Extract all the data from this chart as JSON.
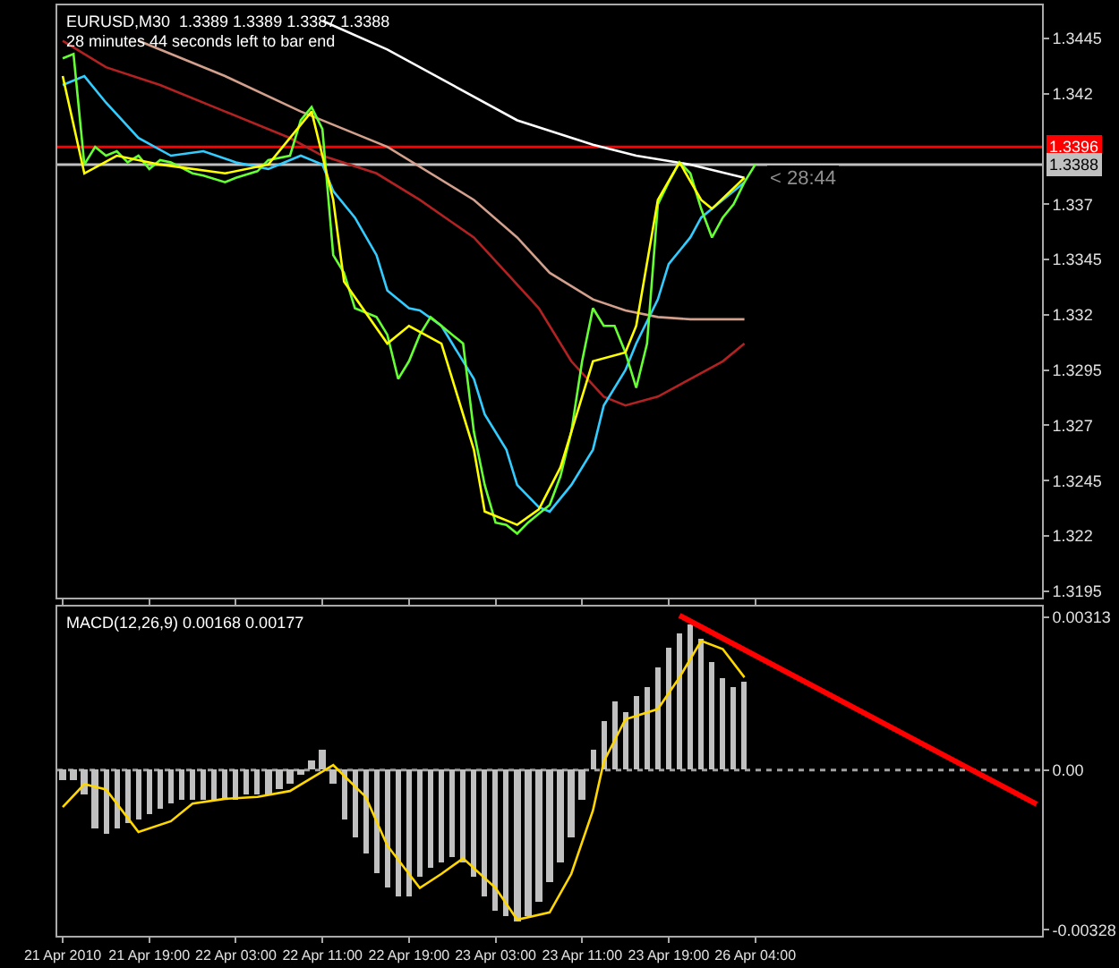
{
  "chart_data": [
    {
      "type": "line",
      "ylim": [
        1.3192,
        1.346
      ],
      "categories": [
        null,
        null,
        null,
        null,
        null,
        null,
        null,
        null,
        null,
        null,
        null,
        null,
        null,
        null,
        null,
        null,
        null,
        null,
        null,
        null,
        null,
        null,
        null,
        null,
        null,
        null,
        null,
        null,
        null,
        null,
        null,
        null,
        null,
        null,
        null,
        null,
        null,
        null,
        null,
        null,
        null,
        null,
        null,
        null,
        null,
        null,
        null,
        null,
        null,
        null,
        null,
        null,
        null,
        null,
        null,
        null,
        null,
        null,
        null,
        null,
        null,
        null,
        null,
        null,
        null,
        null,
        null,
        null,
        null,
        null,
        null,
        null,
        null,
        null,
        null,
        null,
        null,
        null,
        null,
        null,
        null,
        null,
        null,
        null,
        null,
        null,
        null,
        null,
        null,
        null,
        null
      ],
      "yticks": [
        1.3445,
        1.342,
        1.337,
        1.3345,
        1.332,
        1.3295,
        1.327,
        1.3245,
        1.322,
        1.3195
      ],
      "tick_labels": "y",
      "annotations": [
        "EURUSD,M30  1.3389 1.3389 1.3387 1.3388",
        "28 minutes 44 seconds left to bar end",
        {
          "text": "< 28:44",
          "y": 1.3388
        }
      ],
      "ref_lines": [
        {
          "axis": "y",
          "value": 1.3396,
          "label": "1.3396",
          "color": "#ff0000"
        },
        {
          "axis": "y",
          "value": 1.3388,
          "label": "1.3388",
          "color": "#c0c0c0"
        }
      ],
      "series": [
        {
          "color": "#ffffff",
          "values": [
            null,
            null,
            null,
            null,
            null,
            null,
            null,
            null,
            null,
            null,
            null,
            null,
            null,
            null,
            null,
            null,
            null,
            null,
            null,
            null,
            null,
            null,
            null,
            null,
            1.3453,
            null,
            null,
            null,
            null,
            null,
            1.344,
            null,
            null,
            null,
            null,
            null,
            1.3424,
            null,
            null,
            null,
            null,
            null,
            1.3408,
            null,
            null,
            null,
            null,
            null,
            null,
            1.3397,
            null,
            null,
            null,
            1.3392,
            null,
            null,
            null,
            null,
            1.3388,
            null,
            null,
            null,
            null,
            1.3382,
            null,
            null,
            null,
            null,
            null,
            null,
            null,
            null,
            null,
            null,
            null,
            null,
            null,
            null,
            null,
            null,
            null,
            null,
            null,
            null,
            null,
            null,
            null,
            null,
            null,
            null,
            null
          ]
        },
        {
          "color": "#d2a08c",
          "values": [
            null,
            null,
            null,
            null,
            null,
            null,
            null,
            1.3444,
            null,
            null,
            null,
            null,
            null,
            null,
            null,
            1.3428,
            null,
            null,
            null,
            null,
            null,
            null,
            1.3412,
            null,
            null,
            null,
            null,
            null,
            null,
            null,
            1.3396,
            null,
            null,
            null,
            null,
            null,
            null,
            null,
            1.3372,
            null,
            null,
            null,
            1.3355,
            null,
            null,
            1.3339,
            null,
            null,
            null,
            1.3327,
            null,
            null,
            1.3322,
            null,
            null,
            1.3319,
            null,
            null,
            1.3318,
            null,
            null,
            null,
            null,
            1.3318,
            null,
            null,
            null,
            null,
            null,
            null,
            null,
            null,
            null,
            null,
            null,
            null,
            null,
            null,
            null,
            null,
            null,
            null,
            null,
            null,
            null,
            null,
            null,
            null,
            null,
            null,
            null
          ]
        },
        {
          "color": "#b22222",
          "values": [
            1.3444,
            null,
            null,
            null,
            1.3432,
            null,
            null,
            null,
            null,
            1.3424,
            null,
            null,
            null,
            null,
            null,
            1.3412,
            null,
            null,
            null,
            null,
            null,
            1.34,
            null,
            null,
            1.3392,
            null,
            null,
            null,
            null,
            1.3384,
            null,
            null,
            null,
            1.3372,
            null,
            null,
            null,
            null,
            1.3355,
            null,
            null,
            1.3339,
            null,
            null,
            1.3323,
            null,
            null,
            1.3299,
            null,
            null,
            1.3283,
            null,
            1.3279,
            null,
            null,
            1.3283,
            null,
            null,
            1.3291,
            null,
            null,
            1.3299,
            null,
            1.3307,
            null,
            null,
            null,
            null,
            null,
            null,
            null,
            null,
            null,
            null,
            null,
            null,
            null,
            null,
            null,
            null,
            null,
            null,
            null,
            null,
            null,
            null,
            null,
            null,
            null,
            null,
            null
          ]
        },
        {
          "color": "#33ccff",
          "values": [
            1.3424,
            null,
            1.3428,
            null,
            1.3416,
            null,
            null,
            1.34,
            null,
            null,
            1.3392,
            null,
            null,
            1.3394,
            null,
            null,
            1.3389,
            null,
            null,
            1.3386,
            null,
            null,
            1.3392,
            null,
            1.3388,
            1.3376,
            null,
            1.3364,
            null,
            1.3347,
            1.3331,
            null,
            1.3323,
            1.3322,
            null,
            1.3315,
            1.3307,
            null,
            1.3291,
            1.3275,
            null,
            1.3259,
            1.3243,
            null,
            1.3233,
            1.3231,
            null,
            1.3243,
            null,
            1.3259,
            1.3279,
            null,
            1.3295,
            1.3307,
            null,
            1.3327,
            1.3343,
            null,
            1.3355,
            1.3364,
            null,
            1.3372,
            null,
            1.338,
            null,
            null,
            null,
            null,
            null,
            null,
            null,
            null,
            null,
            null,
            null,
            null,
            null,
            null,
            null,
            null,
            null,
            null,
            null,
            null,
            null,
            null,
            null,
            null,
            null,
            null,
            null
          ]
        },
        {
          "color": "#66ff33",
          "values": [
            1.3436,
            1.3438,
            1.3388,
            1.3396,
            1.3392,
            1.3394,
            1.3389,
            1.3392,
            1.3386,
            1.339,
            1.3389,
            null,
            1.3384,
            1.3383,
            null,
            1.338,
            1.3382,
            null,
            1.3385,
            1.339,
            null,
            1.3392,
            1.3408,
            1.3414,
            1.3404,
            1.3347,
            1.3339,
            1.3323,
            null,
            1.3319,
            1.3311,
            1.3291,
            1.3299,
            1.3311,
            1.3319,
            1.3315,
            null,
            1.3307,
            1.3267,
            1.3243,
            1.3226,
            1.3225,
            1.3221,
            1.3226,
            1.323,
            1.3234,
            1.3247,
            1.3267,
            1.3299,
            1.3323,
            1.3315,
            1.3315,
            1.3303,
            1.3287,
            1.3307,
            1.337,
            1.338,
            1.3389,
            1.3384,
            1.3368,
            1.3355,
            1.3364,
            1.337,
            1.338,
            1.3388,
            null,
            null,
            null,
            null,
            null,
            null,
            null,
            null,
            null,
            null,
            null,
            null,
            null,
            null,
            null,
            null,
            null,
            null,
            null,
            null,
            null,
            null,
            null,
            null,
            null,
            null
          ]
        },
        {
          "color": "#ffff00",
          "values": [
            1.3428,
            null,
            1.3384,
            null,
            null,
            1.3392,
            null,
            null,
            null,
            1.3388,
            null,
            null,
            null,
            null,
            null,
            1.3384,
            null,
            null,
            null,
            1.3388,
            null,
            null,
            null,
            1.3412,
            null,
            1.3372,
            1.3335,
            null,
            null,
            null,
            1.3307,
            null,
            1.3315,
            null,
            null,
            1.3307,
            null,
            null,
            1.3259,
            1.3231,
            null,
            null,
            1.3225,
            null,
            1.3232,
            null,
            1.3251,
            null,
            null,
            1.3299,
            null,
            null,
            1.3303,
            1.3315,
            null,
            1.3372,
            null,
            1.3389,
            null,
            1.3372,
            1.3368,
            null,
            null,
            1.3382,
            null,
            null,
            null,
            null,
            null,
            null,
            null,
            null,
            null,
            null,
            null,
            null,
            null,
            null,
            null,
            null,
            null,
            null,
            null,
            null,
            null,
            null,
            null,
            null,
            null,
            null,
            null
          ]
        }
      ]
    },
    {
      "type": "bar",
      "ylim": [
        -0.0034,
        0.00335
      ],
      "categories": [
        "21 Apr 2010",
        null,
        null,
        null,
        null,
        null,
        null,
        null,
        "21 Apr 19:00",
        null,
        null,
        null,
        null,
        null,
        null,
        null,
        "22 Apr 03:00",
        null,
        null,
        null,
        null,
        null,
        null,
        null,
        "22 Apr 11:00",
        null,
        null,
        null,
        null,
        null,
        null,
        null,
        "22 Apr 19:00",
        null,
        null,
        null,
        null,
        null,
        null,
        null,
        "23 Apr 03:00",
        null,
        null,
        null,
        null,
        null,
        null,
        null,
        "23 Apr 11:00",
        null,
        null,
        null,
        null,
        null,
        null,
        null,
        "23 Apr 19:00",
        null,
        null,
        null,
        null,
        null,
        null,
        null,
        "26 Apr 04:00",
        null,
        null,
        null,
        null,
        null,
        null,
        null,
        null,
        null,
        null,
        null,
        null,
        null,
        null,
        null,
        null,
        null,
        null,
        null,
        null,
        null,
        null,
        null,
        null,
        null,
        null
      ],
      "yticks": [
        0.00313,
        {
          "value": 0,
          "label": "0.00"
        },
        -0.00328
      ],
      "annotations": [
        "MACD(12,26,9) 0.00168 0.00177"
      ],
      "ref_lines": [
        {
          "axis": "y",
          "value": 0,
          "color": "#a0a0a0",
          "line_style": "dotted"
        }
      ],
      "series": [
        {
          "type": "bar",
          "color": "#c0c0c0",
          "values": [
            -0.0002,
            -0.0002,
            -0.0005,
            -0.0012,
            -0.0013,
            -0.0012,
            -0.0011,
            -0.001,
            -0.0009,
            -0.0008,
            -0.0007,
            -0.0006,
            -0.0006,
            -0.0006,
            -0.0006,
            -0.0006,
            -0.0006,
            -0.0005,
            -0.0005,
            -0.0005,
            -0.0004,
            -0.0003,
            -0.0001,
            0.0002,
            0.0004,
            -0.0003,
            -0.001,
            -0.0014,
            -0.0017,
            -0.0021,
            -0.0024,
            -0.0026,
            -0.0026,
            -0.0022,
            -0.002,
            -0.0019,
            -0.0018,
            -0.0019,
            -0.0022,
            -0.0026,
            -0.0029,
            -0.003,
            -0.0031,
            -0.003,
            -0.0027,
            -0.0023,
            -0.0019,
            -0.0014,
            -0.0006,
            0.0004,
            0.001,
            0.0014,
            0.0012,
            0.0015,
            0.0017,
            0.0021,
            0.0025,
            0.0028,
            0.003,
            0.0027,
            0.0022,
            0.0019,
            0.0017,
            0.0018,
            null,
            null,
            null,
            null,
            null,
            null,
            null,
            null,
            null,
            null,
            null,
            null,
            null,
            null,
            null,
            null,
            null,
            null,
            null,
            null,
            null,
            null,
            null,
            null,
            null,
            null,
            null
          ]
        },
        {
          "type": "line",
          "color": "#ffd700",
          "values": [
            -0.00076,
            null,
            -0.00029,
            null,
            -0.0004,
            null,
            -0.00098,
            -0.00127,
            null,
            null,
            -0.00105,
            null,
            -0.00069,
            null,
            null,
            -0.00059,
            null,
            null,
            -0.00055,
            null,
            null,
            -0.00043,
            null,
            null,
            null,
            0.0001,
            null,
            null,
            -0.00055,
            null,
            -0.00155,
            null,
            null,
            -0.00242,
            null,
            -0.00213,
            null,
            -0.00181,
            null,
            null,
            -0.00242,
            null,
            -0.00307,
            null,
            null,
            -0.00292,
            null,
            -0.00213,
            null,
            -0.00083,
            0.00017,
            null,
            0.00104,
            null,
            null,
            0.00125,
            null,
            0.0019,
            null,
            0.00265,
            null,
            0.00248,
            null,
            0.0019,
            null,
            null,
            null,
            null,
            null,
            null,
            null,
            null,
            null,
            null,
            null,
            null,
            null,
            null,
            null,
            null,
            null,
            null,
            null,
            null,
            null,
            null,
            null,
            null,
            null,
            null,
            null
          ]
        },
        {
          "type": "line",
          "color": "#ff0000",
          "values": [
            null,
            null,
            null,
            null,
            null,
            null,
            null,
            null,
            null,
            null,
            null,
            null,
            null,
            null,
            null,
            null,
            null,
            null,
            null,
            null,
            null,
            null,
            null,
            null,
            null,
            null,
            null,
            null,
            null,
            null,
            null,
            null,
            null,
            null,
            null,
            null,
            null,
            null,
            null,
            null,
            null,
            null,
            null,
            null,
            null,
            null,
            null,
            null,
            null,
            null,
            null,
            null,
            null,
            null,
            null,
            null,
            null,
            0.00317,
            null,
            null,
            null,
            null,
            null,
            null,
            null,
            null,
            null,
            null,
            null,
            null,
            null,
            null,
            null,
            null,
            null,
            null,
            null,
            null,
            null,
            null,
            null,
            null,
            null,
            null,
            null,
            null,
            null,
            null,
            null,
            null,
            -0.0007
          ]
        }
      ]
    }
  ]
}
